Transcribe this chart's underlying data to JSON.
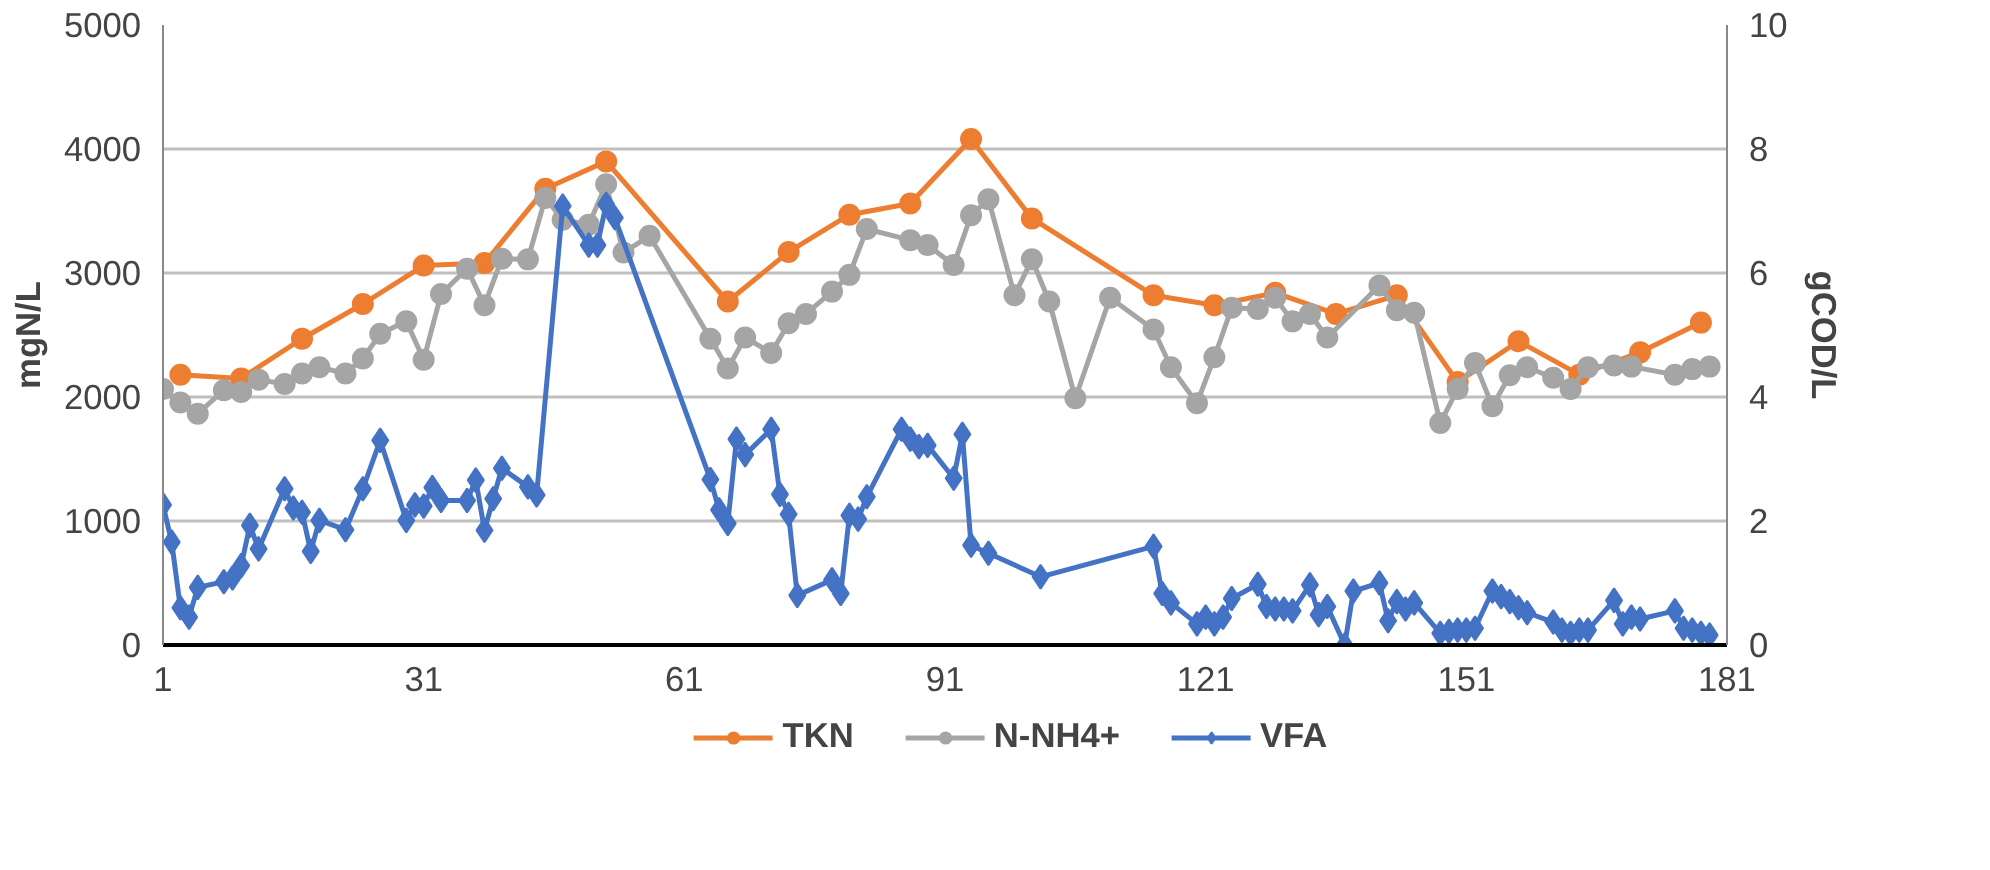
{
  "chart_data": {
    "type": "line",
    "ylabel": "mgN/L",
    "y2label": "gCOD/L",
    "xlim": [
      1,
      181
    ],
    "xticks": [
      1,
      31,
      61,
      91,
      121,
      151,
      181
    ],
    "ylim": [
      0,
      5000
    ],
    "yticks": [
      0,
      1000,
      2000,
      3000,
      4000,
      5000
    ],
    "y2lim": [
      0,
      10
    ],
    "y2ticks": [
      0,
      2,
      4,
      6,
      8,
      10
    ],
    "grid": "y",
    "legend": "bottom",
    "line_style": "solid",
    "series": [
      {
        "name": "TKN",
        "color": "#ed7d31",
        "marker": "circle",
        "x": [
          3,
          10,
          17,
          24,
          31,
          38,
          45,
          52,
          66,
          73,
          80,
          87,
          94,
          101,
          115,
          122,
          129,
          136,
          143,
          150,
          157,
          164,
          171,
          178
        ],
        "values": [
          2180,
          2150,
          2470,
          2750,
          3060,
          3080,
          3680,
          3900,
          2770,
          3170,
          3470,
          3560,
          4080,
          3440,
          2820,
          2740,
          2840,
          2670,
          2820,
          2120,
          2450,
          2180,
          2360,
          2600
        ]
      },
      {
        "name": "N-NH4+",
        "color": "#a5a5a5",
        "marker": "circle",
        "x": [
          1,
          3,
          5,
          8,
          10,
          12,
          15,
          17,
          19,
          22,
          24,
          26,
          29,
          31,
          33,
          36,
          38,
          40,
          43,
          45,
          47,
          50,
          52,
          54,
          57,
          64,
          66,
          68,
          71,
          73,
          75,
          78,
          80,
          82,
          87,
          89,
          92,
          94,
          96,
          99,
          101,
          103,
          106,
          110,
          115,
          117,
          120,
          122,
          124,
          127,
          129,
          131,
          133,
          135,
          141,
          143,
          145,
          148,
          150,
          152,
          154,
          156,
          158,
          161,
          163,
          165,
          168,
          170,
          175,
          177,
          179
        ],
        "values": [
          2065,
          1955,
          1865,
          2055,
          2040,
          2140,
          2105,
          2190,
          2240,
          2190,
          2310,
          2510,
          2610,
          2300,
          2830,
          3035,
          2740,
          3115,
          3110,
          3605,
          3430,
          3390,
          3715,
          3165,
          3300,
          2470,
          2230,
          2480,
          2355,
          2595,
          2670,
          2850,
          2985,
          3355,
          3265,
          3225,
          3065,
          3465,
          3595,
          2820,
          3110,
          2770,
          1990,
          2800,
          2545,
          2240,
          1950,
          2320,
          2720,
          2710,
          2800,
          2610,
          2670,
          2480,
          2900,
          2700,
          2680,
          1790,
          2065,
          2275,
          1925,
          2175,
          2240,
          2155,
          2065,
          2240,
          2255,
          2245,
          2180,
          2225,
          2245
        ]
      },
      {
        "name": "VFA",
        "color": "#4472c4",
        "marker": "diamond",
        "axis": "y2",
        "x": [
          1,
          2,
          3,
          4,
          5,
          8,
          9,
          10,
          11,
          12,
          15,
          16,
          17,
          18,
          19,
          22,
          24,
          26,
          29,
          30,
          31,
          32,
          33,
          36,
          37,
          38,
          39,
          40,
          43,
          44,
          47,
          50,
          51,
          52,
          53,
          64,
          65,
          66,
          67,
          68,
          71,
          72,
          73,
          74,
          78,
          79,
          80,
          81,
          82,
          86,
          87,
          88,
          89,
          92,
          93,
          94,
          96,
          102,
          115,
          116,
          117,
          120,
          121,
          122,
          123,
          124,
          127,
          128,
          129,
          130,
          131,
          133,
          134,
          135,
          137,
          138,
          141,
          142,
          143,
          144,
          145,
          148,
          149,
          150,
          151,
          152,
          154,
          155,
          156,
          157,
          158,
          161,
          162,
          163,
          164,
          165,
          168,
          169,
          170,
          171,
          175,
          176,
          177,
          178,
          179
        ],
        "values": [
          2.26,
          1.66,
          0.6,
          0.45,
          0.93,
          1.02,
          1.08,
          1.28,
          1.93,
          1.55,
          2.52,
          2.21,
          2.14,
          1.51,
          2.01,
          1.86,
          2.52,
          3.3,
          2.01,
          2.26,
          2.24,
          2.54,
          2.33,
          2.33,
          2.66,
          1.85,
          2.36,
          2.85,
          2.55,
          2.42,
          7.08,
          6.45,
          6.45,
          7.11,
          6.89,
          2.67,
          2.18,
          1.96,
          3.32,
          3.07,
          3.48,
          2.43,
          2.11,
          0.8,
          1.05,
          0.83,
          2.09,
          2.03,
          2.39,
          3.48,
          3.32,
          3.2,
          3.22,
          2.69,
          3.4,
          1.61,
          1.48,
          1.1,
          1.59,
          0.83,
          0.68,
          0.34,
          0.45,
          0.34,
          0.45,
          0.75,
          0.98,
          0.62,
          0.58,
          0.58,
          0.55,
          0.97,
          0.49,
          0.62,
          0.0,
          0.87,
          1.0,
          0.39,
          0.7,
          0.58,
          0.68,
          0.19,
          0.22,
          0.24,
          0.24,
          0.27,
          0.87,
          0.78,
          0.7,
          0.6,
          0.52,
          0.37,
          0.24,
          0.19,
          0.24,
          0.24,
          0.72,
          0.34,
          0.45,
          0.42,
          0.55,
          0.27,
          0.24,
          0.19,
          0.16
        ]
      }
    ]
  }
}
